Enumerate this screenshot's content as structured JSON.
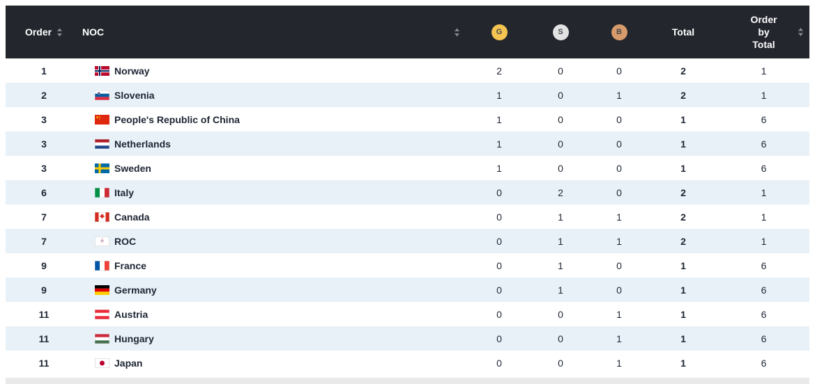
{
  "table": {
    "header": {
      "order": "Order",
      "noc": "NOC",
      "gold": "G",
      "silver": "S",
      "bronze": "B",
      "total": "Total",
      "order_by_total": "Order by Total"
    },
    "rows": [
      {
        "order": 1,
        "flag": "norway-flag",
        "noc": "Norway",
        "gold": 2,
        "silver": 0,
        "bronze": 0,
        "total": 2,
        "order_by_total": 1
      },
      {
        "order": 2,
        "flag": "slovenia-flag",
        "noc": "Slovenia",
        "gold": 1,
        "silver": 0,
        "bronze": 1,
        "total": 2,
        "order_by_total": 1
      },
      {
        "order": 3,
        "flag": "china-flag",
        "noc": "People's Republic of China",
        "gold": 1,
        "silver": 0,
        "bronze": 0,
        "total": 1,
        "order_by_total": 6
      },
      {
        "order": 3,
        "flag": "netherlands-flag",
        "noc": "Netherlands",
        "gold": 1,
        "silver": 0,
        "bronze": 0,
        "total": 1,
        "order_by_total": 6
      },
      {
        "order": 3,
        "flag": "sweden-flag",
        "noc": "Sweden",
        "gold": 1,
        "silver": 0,
        "bronze": 0,
        "total": 1,
        "order_by_total": 6
      },
      {
        "order": 6,
        "flag": "italy-flag",
        "noc": "Italy",
        "gold": 0,
        "silver": 2,
        "bronze": 0,
        "total": 2,
        "order_by_total": 1
      },
      {
        "order": 7,
        "flag": "canada-flag",
        "noc": "Canada",
        "gold": 0,
        "silver": 1,
        "bronze": 1,
        "total": 2,
        "order_by_total": 1
      },
      {
        "order": 7,
        "flag": "roc-flag",
        "noc": "ROC",
        "gold": 0,
        "silver": 1,
        "bronze": 1,
        "total": 2,
        "order_by_total": 1
      },
      {
        "order": 9,
        "flag": "france-flag",
        "noc": "France",
        "gold": 0,
        "silver": 1,
        "bronze": 0,
        "total": 1,
        "order_by_total": 6
      },
      {
        "order": 9,
        "flag": "germany-flag",
        "noc": "Germany",
        "gold": 0,
        "silver": 1,
        "bronze": 0,
        "total": 1,
        "order_by_total": 6
      },
      {
        "order": 11,
        "flag": "austria-flag",
        "noc": "Austria",
        "gold": 0,
        "silver": 0,
        "bronze": 1,
        "total": 1,
        "order_by_total": 6
      },
      {
        "order": 11,
        "flag": "hungary-flag",
        "noc": "Hungary",
        "gold": 0,
        "silver": 0,
        "bronze": 1,
        "total": 1,
        "order_by_total": 6
      },
      {
        "order": 11,
        "flag": "japan-flag",
        "noc": "Japan",
        "gold": 0,
        "silver": 0,
        "bronze": 1,
        "total": 1,
        "order_by_total": 6
      }
    ]
  },
  "colors": {
    "header_bg": "#23262d",
    "header_text": "#ffffff",
    "row_stripe": "#e8f1f8",
    "row_bg": "#ffffff",
    "gold_badge": "#f5c451",
    "silver_badge": "#e2e2e2",
    "bronze_badge": "#d79a6b",
    "body_text": "#1d2533",
    "sort_icon": "#85898f",
    "footer_strip": "#eaeaea"
  }
}
